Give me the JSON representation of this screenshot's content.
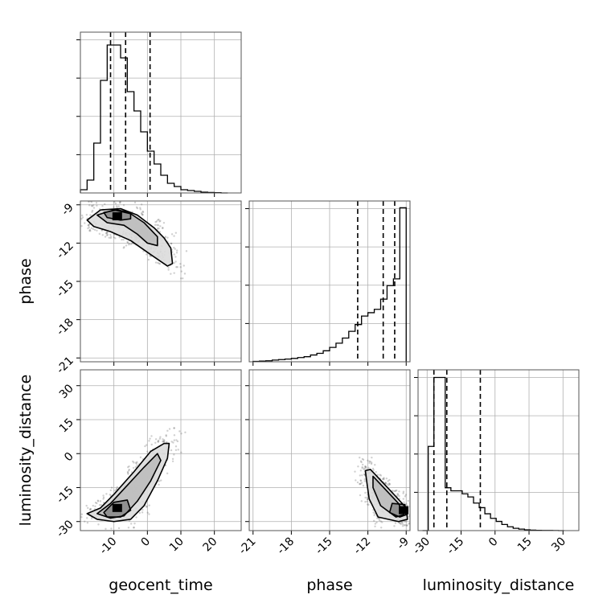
{
  "figure": {
    "style": {
      "line_color": "#000000",
      "grid_color": "#b0b0b0",
      "scatter_color": "#555555",
      "density_colors": [
        "#f2f2f2",
        "#dcdcdc",
        "#bdbdbd",
        "#8c8c8c",
        "#4a4a4a",
        "#000000"
      ]
    }
  },
  "chart_data": {
    "type": "corner",
    "parameters": [
      "geocent_time",
      "phase",
      "luminosity_distance"
    ],
    "axis_labels": {
      "geocent_time": "geocent_time",
      "phase": "phase",
      "luminosity_distance": "luminosity_distance"
    },
    "ranges": {
      "geocent_time": [
        -20,
        28
      ],
      "phase": [
        -21.3,
        -8.7
      ],
      "luminosity_distance": [
        -34,
        37
      ]
    },
    "ticks": {
      "geocent_time": [
        -10,
        0,
        10,
        20
      ],
      "phase": [
        -21,
        -18,
        -15,
        -12,
        -9
      ],
      "luminosity_distance": [
        -30,
        -15,
        0,
        15,
        30
      ]
    },
    "grid": true,
    "diagonal_histograms": [
      {
        "param": "geocent_time",
        "bin_edges": [
          -20,
          -18,
          -16,
          -14,
          -12,
          -10,
          -8,
          -6,
          -4,
          -2,
          0,
          2,
          4,
          6,
          8,
          10,
          12,
          14,
          16,
          18,
          20,
          22,
          24
        ],
        "counts": [
          2,
          8,
          31,
          70,
          92,
          92,
          84,
          63,
          51,
          38,
          26,
          18,
          11,
          6,
          4,
          2,
          1.5,
          1,
          0.5,
          0.3,
          0.2,
          0
        ],
        "quantile_lines": [
          -11,
          -6.5,
          0.8
        ],
        "ylim": [
          0,
          100
        ]
      },
      {
        "param": "phase",
        "bin_edges": [
          -21,
          -20.5,
          -20,
          -19.5,
          -19,
          -18.5,
          -18,
          -17.5,
          -17,
          -16.5,
          -16,
          -15.5,
          -15,
          -14.5,
          -14,
          -13.5,
          -13,
          -12.5,
          -12,
          -11.5,
          -11,
          -10.5,
          -10,
          -9.5,
          -9
        ],
        "counts": [
          0.2,
          0.4,
          0.6,
          1,
          1.3,
          1.6,
          2,
          2.5,
          3,
          4,
          5,
          6.5,
          8.5,
          11,
          14,
          18,
          22,
          27,
          29,
          31,
          37,
          45,
          49,
          91
        ],
        "quantile_lines": [
          -12.8,
          -10.8,
          -9.9
        ],
        "ylim": [
          0,
          95
        ]
      },
      {
        "param": "luminosity_distance",
        "bin_edges": [
          -32,
          -29.5,
          -27,
          -24.5,
          -22,
          -19.5,
          -17,
          -14.5,
          -12,
          -9.5,
          -7,
          -4.5,
          -2,
          0.5,
          3,
          5.5,
          8,
          10.5,
          13,
          15.5,
          18,
          20.5,
          23,
          25.5,
          28,
          30.5
        ],
        "counts": [
          0,
          55,
          100,
          100,
          28,
          26,
          26,
          24,
          22,
          18,
          15,
          11,
          8,
          6,
          4,
          2.5,
          1.5,
          1,
          0.5,
          0.3,
          0.2,
          0.1,
          0.1,
          0.05,
          0
        ],
        "quantile_lines": [
          -27,
          -21.3,
          -6.5
        ],
        "ylim": [
          0,
          105
        ]
      }
    ],
    "pair_panels": [
      {
        "x": "geocent_time",
        "y": "phase",
        "density_peak": [
          -9,
          -9.9
        ],
        "contours": [
          [
            [
              -18,
              -10.2
            ],
            [
              -14,
              -9.4
            ],
            [
              -8,
              -9.3
            ],
            [
              -3,
              -9.8
            ],
            [
              2,
              -10.8
            ],
            [
              5,
              -11.6
            ],
            [
              7,
              -12.4
            ],
            [
              7.5,
              -13.6
            ],
            [
              6,
              -13.8
            ],
            [
              1,
              -12.9
            ],
            [
              -5,
              -11.8
            ],
            [
              -11,
              -11.1
            ],
            [
              -16,
              -10.7
            ]
          ],
          [
            [
              -15,
              -9.8
            ],
            [
              -10,
              -9.4
            ],
            [
              -5,
              -9.7
            ],
            [
              -1,
              -10.4
            ],
            [
              3,
              -11.5
            ],
            [
              3,
              -12.2
            ],
            [
              0,
              -12.0
            ],
            [
              -3,
              -11.3
            ],
            [
              -7,
              -10.6
            ],
            [
              -12,
              -10.4
            ]
          ],
          [
            [
              -13,
              -9.6
            ],
            [
              -9,
              -9.4
            ],
            [
              -5,
              -9.6
            ],
            [
              -5,
              -10.1
            ],
            [
              -8,
              -10.2
            ],
            [
              -12,
              -10.0
            ]
          ]
        ]
      },
      {
        "x": "geocent_time",
        "y": "luminosity_distance",
        "density_peak": [
          -9,
          -24
        ],
        "contours": [
          [
            [
              -18,
              -26.5
            ],
            [
              -14,
              -24
            ],
            [
              -10,
              -18
            ],
            [
              -4,
              -8
            ],
            [
              1,
              1
            ],
            [
              5,
              4.5
            ],
            [
              6.5,
              4.5
            ],
            [
              6,
              -2
            ],
            [
              3,
              -12
            ],
            [
              -1,
              -23
            ],
            [
              -5,
              -29
            ],
            [
              -10,
              -30
            ],
            [
              -15,
              -29
            ]
          ],
          [
            [
              -15,
              -26.5
            ],
            [
              -11,
              -22
            ],
            [
              -6,
              -14
            ],
            [
              -1,
              -6
            ],
            [
              3,
              0
            ],
            [
              4,
              -3
            ],
            [
              1,
              -12
            ],
            [
              -3,
              -21
            ],
            [
              -7,
              -27.5
            ],
            [
              -11,
              -28.5
            ]
          ],
          [
            [
              -13,
              -26
            ],
            [
              -10,
              -21.5
            ],
            [
              -6,
              -20.5
            ],
            [
              -5,
              -25
            ],
            [
              -8,
              -28
            ],
            [
              -12,
              -28
            ]
          ]
        ]
      },
      {
        "x": "phase",
        "y": "luminosity_distance",
        "density_peak": [
          -9.2,
          -25
        ],
        "contours": [
          [
            [
              -11.8,
              -7
            ],
            [
              -10.8,
              -13
            ],
            [
              -9.8,
              -19
            ],
            [
              -9.0,
              -24
            ],
            [
              -8.9,
              -29
            ],
            [
              -9.6,
              -30
            ],
            [
              -11.2,
              -28
            ],
            [
              -11.9,
              -20
            ],
            [
              -12.1,
              -12
            ],
            [
              -12.2,
              -7.5
            ]
          ],
          [
            [
              -11.6,
              -10
            ],
            [
              -10.6,
              -16
            ],
            [
              -9.6,
              -22
            ],
            [
              -9.2,
              -27
            ],
            [
              -9.8,
              -28
            ],
            [
              -11.0,
              -23
            ],
            [
              -11.6,
              -15
            ]
          ],
          [
            [
              -10.1,
              -22
            ],
            [
              -9.1,
              -22.5
            ],
            [
              -9.0,
              -27
            ],
            [
              -9.5,
              -28
            ],
            [
              -10.3,
              -26
            ]
          ]
        ]
      }
    ]
  }
}
